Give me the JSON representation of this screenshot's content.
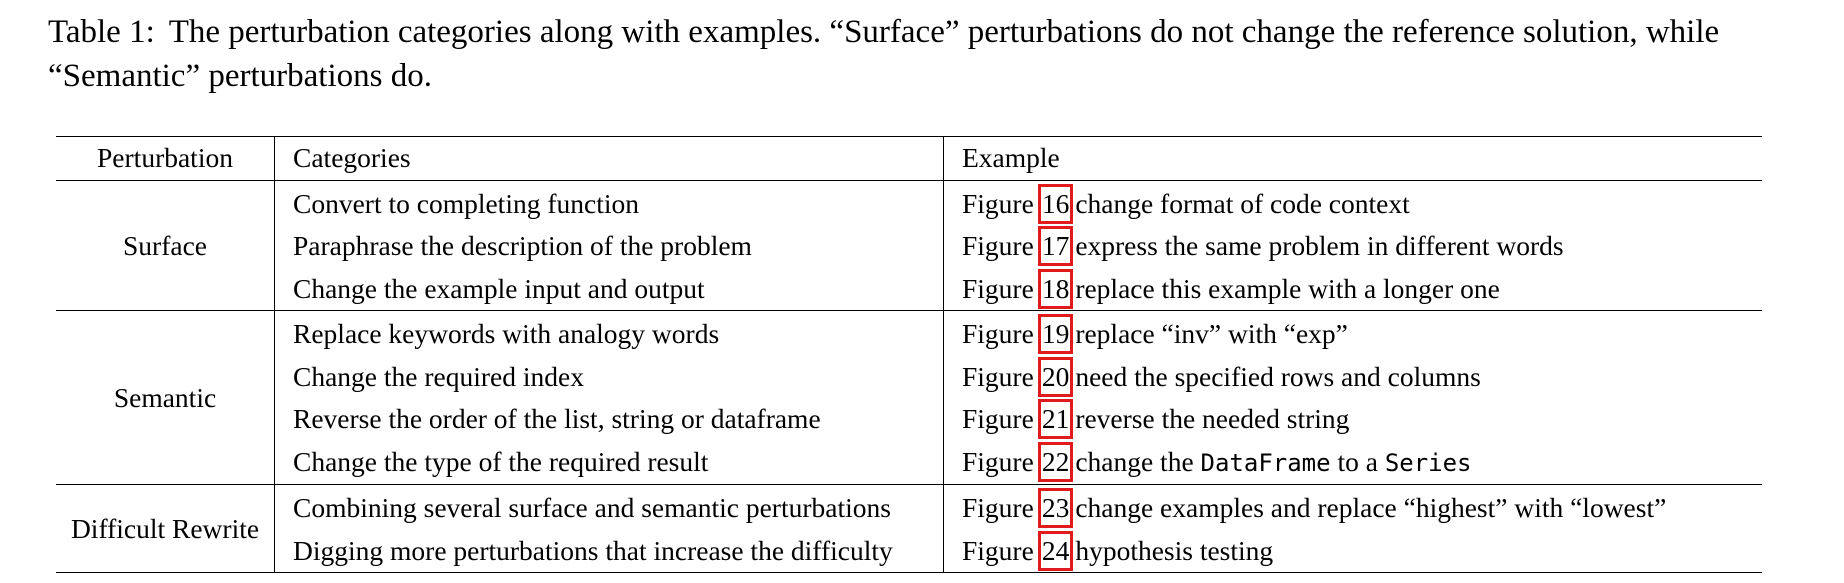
{
  "caption": {
    "label": "Table 1:",
    "text": "The perturbation categories along with examples. “Surface” perturbations do not change the reference solution, while “Semantic” perturbations do."
  },
  "table": {
    "headers": [
      "Perturbation",
      "Categories",
      "Example"
    ],
    "figure_word": "Figure",
    "groups": [
      {
        "perturbation": "Surface",
        "rows": [
          {
            "category": "Convert to completing function",
            "figure": "16",
            "example": "change format of code context"
          },
          {
            "category": "Paraphrase the description of the problem",
            "figure": "17",
            "example": "express the same problem in different words"
          },
          {
            "category": "Change the example input and output",
            "figure": "18",
            "example": "replace this example with a longer one"
          }
        ]
      },
      {
        "perturbation": "Semantic",
        "rows": [
          {
            "category": "Replace keywords with analogy words",
            "figure": "19",
            "example": "replace “inv” with “exp”"
          },
          {
            "category": "Change the required index",
            "figure": "20",
            "example": "need the specified rows and columns"
          },
          {
            "category": "Reverse the order of the list, string or dataframe",
            "figure": "21",
            "example": "reverse the needed string"
          },
          {
            "category": "Change the type of the required result",
            "figure": "22",
            "example_prefix": "change the",
            "example_code1": "DataFrame",
            "example_mid": "to a",
            "example_code2": "Series"
          }
        ]
      },
      {
        "perturbation": "Difficult Rewrite",
        "rows": [
          {
            "category": "Combining several surface and semantic perturbations",
            "figure": "23",
            "example": "change examples and replace “highest” with “lowest”"
          },
          {
            "category": "Digging more perturbations that increase the difficulty",
            "figure": "24",
            "example": "hypothesis testing"
          }
        ]
      }
    ]
  },
  "colors": {
    "figure_box": "#e01b1b"
  }
}
